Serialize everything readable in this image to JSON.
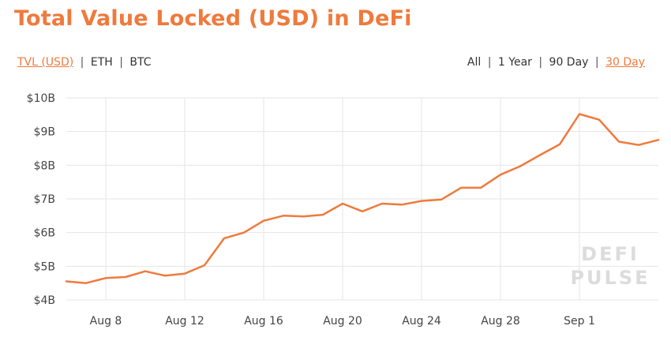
{
  "header": {
    "title": "Total Value Locked (USD) in DeFi"
  },
  "unit_toggles": [
    {
      "label": "TVL (USD)",
      "active": true
    },
    {
      "label": "ETH",
      "active": false
    },
    {
      "label": "BTC",
      "active": false
    }
  ],
  "range_toggles": [
    {
      "label": "All",
      "active": false
    },
    {
      "label": "1 Year",
      "active": false
    },
    {
      "label": "90 Day",
      "active": false
    },
    {
      "label": "30 Day",
      "active": true
    }
  ],
  "separator": "|",
  "watermark": {
    "line1": "DEFI",
    "line2": "PULSE"
  },
  "colors": {
    "accent": "#ef7a3c",
    "line": "#ef7a3c",
    "grid": "#e6e6e6",
    "watermark": "#dcdcdc"
  },
  "chart_data": {
    "type": "line",
    "title": "Total Value Locked (USD) in DeFi",
    "xlabel": "",
    "ylabel": "",
    "grid": true,
    "ylim": [
      4,
      10
    ],
    "y_ticks": [
      {
        "value": 4,
        "label": "$4B"
      },
      {
        "value": 5,
        "label": "$5B"
      },
      {
        "value": 6,
        "label": "$6B"
      },
      {
        "value": 7,
        "label": "$7B"
      },
      {
        "value": 8,
        "label": "$8B"
      },
      {
        "value": 9,
        "label": "$9B"
      },
      {
        "value": 10,
        "label": "$10B"
      }
    ],
    "x_ticks": [
      "Aug 8",
      "Aug 12",
      "Aug 16",
      "Aug 20",
      "Aug 24",
      "Aug 28",
      "Sep 1"
    ],
    "x": [
      "Aug 6",
      "Aug 7",
      "Aug 8",
      "Aug 9",
      "Aug 10",
      "Aug 11",
      "Aug 12",
      "Aug 13",
      "Aug 14",
      "Aug 15",
      "Aug 16",
      "Aug 17",
      "Aug 18",
      "Aug 19",
      "Aug 20",
      "Aug 21",
      "Aug 22",
      "Aug 23",
      "Aug 24",
      "Aug 25",
      "Aug 26",
      "Aug 27",
      "Aug 28",
      "Aug 29",
      "Aug 30",
      "Aug 31",
      "Sep 1",
      "Sep 2",
      "Sep 3",
      "Sep 4",
      "Sep 5"
    ],
    "series": [
      {
        "values": [
          4.55,
          4.5,
          4.65,
          4.68,
          4.85,
          4.72,
          4.78,
          5.03,
          5.83,
          6.0,
          6.35,
          6.5,
          6.48,
          6.53,
          6.86,
          6.63,
          6.86,
          6.83,
          6.94,
          6.98,
          7.33,
          7.33,
          7.72,
          7.97,
          8.3,
          8.62,
          9.52,
          9.35,
          8.7,
          8.6,
          8.75
        ]
      }
    ]
  }
}
